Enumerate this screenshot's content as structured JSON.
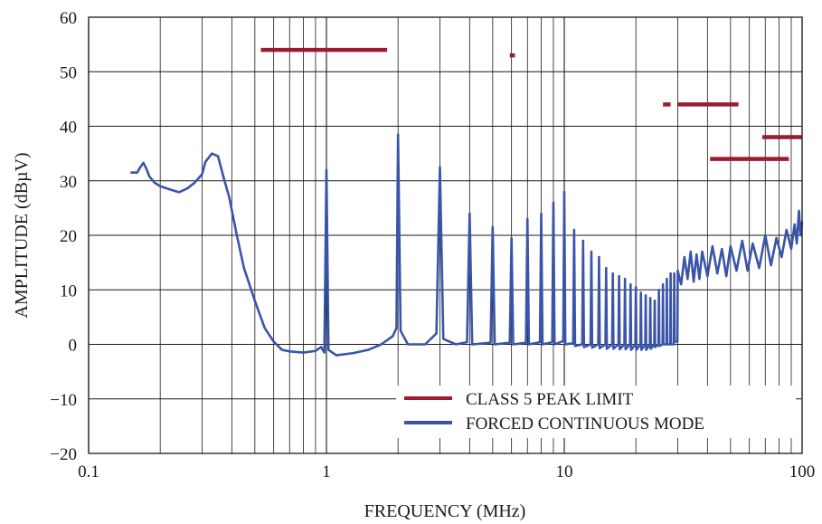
{
  "chart_data": {
    "type": "line",
    "title": "",
    "xlabel": "FREQUENCY (MHz)",
    "ylabel": "AMPLITUDE (dBµV)",
    "xscale": "log",
    "xlim": [
      0.1,
      100
    ],
    "ylim": [
      -20,
      60
    ],
    "x_ticks": [
      "0.1",
      "1",
      "10",
      "100"
    ],
    "x_tick_values": [
      0.1,
      1,
      10,
      100
    ],
    "y_ticks": [
      "60",
      "50",
      "40",
      "30",
      "20",
      "10",
      "0",
      "−10",
      "−20"
    ],
    "y_tick_values": [
      60,
      50,
      40,
      30,
      20,
      10,
      0,
      -10,
      -20
    ],
    "grid": true,
    "legend_position": "bottom-right",
    "colors": {
      "limit": "#9b1b30",
      "measured": "#3a55a8",
      "grid": "#1a1a1a"
    },
    "series": [
      {
        "name": "CLASS 5 PEAK LIMIT",
        "style": "segments",
        "segments": [
          {
            "x": [
              0.53,
              1.8
            ],
            "y": 54
          },
          {
            "x": [
              5.9,
              6.2
            ],
            "y": 53
          },
          {
            "x": [
              26,
              28
            ],
            "y": 44
          },
          {
            "x": [
              30,
              54
            ],
            "y": 44
          },
          {
            "x": [
              41,
              88
            ],
            "y": 34
          },
          {
            "x": [
              68,
              100
            ],
            "y": 38
          }
        ]
      },
      {
        "name": "FORCED CONTINUOUS MODE",
        "style": "line",
        "points": [
          [
            0.15,
            31.5
          ],
          [
            0.16,
            31.5
          ],
          [
            0.165,
            32.5
          ],
          [
            0.17,
            33.3
          ],
          [
            0.175,
            32.2
          ],
          [
            0.18,
            30.8
          ],
          [
            0.19,
            29.6
          ],
          [
            0.2,
            29.0
          ],
          [
            0.22,
            28.4
          ],
          [
            0.24,
            27.9
          ],
          [
            0.26,
            28.6
          ],
          [
            0.28,
            29.7
          ],
          [
            0.3,
            31.2
          ],
          [
            0.31,
            33.5
          ],
          [
            0.33,
            35.0
          ],
          [
            0.35,
            34.5
          ],
          [
            0.37,
            30.5
          ],
          [
            0.39,
            27.0
          ],
          [
            0.42,
            20.0
          ],
          [
            0.45,
            14.0
          ],
          [
            0.5,
            8.0
          ],
          [
            0.55,
            3.0
          ],
          [
            0.6,
            0.5
          ],
          [
            0.65,
            -1.0
          ],
          [
            0.7,
            -1.3
          ],
          [
            0.8,
            -1.5
          ],
          [
            0.9,
            -1.2
          ],
          [
            0.95,
            -0.5
          ],
          [
            0.98,
            -1.5
          ],
          [
            1.0,
            32.0
          ],
          [
            1.02,
            -1.0
          ],
          [
            1.1,
            -2.0
          ],
          [
            1.3,
            -1.6
          ],
          [
            1.5,
            -1.0
          ],
          [
            1.7,
            0.0
          ],
          [
            1.9,
            1.5
          ],
          [
            1.97,
            3.0
          ],
          [
            2.0,
            38.5
          ],
          [
            2.05,
            2.5
          ],
          [
            2.2,
            0.0
          ],
          [
            2.6,
            0.0
          ],
          [
            2.9,
            2.0
          ],
          [
            3.0,
            32.5
          ],
          [
            3.1,
            1.0
          ],
          [
            3.5,
            0.0
          ],
          [
            3.9,
            0.4
          ],
          [
            4.0,
            24.0
          ],
          [
            4.1,
            0.0
          ],
          [
            4.9,
            0.3
          ],
          [
            5.0,
            21.5
          ],
          [
            5.1,
            0.0
          ],
          [
            5.9,
            0.3
          ],
          [
            6.0,
            19.5
          ],
          [
            6.1,
            0.0
          ],
          [
            6.9,
            0.3
          ],
          [
            7.0,
            23.0
          ],
          [
            7.1,
            0.0
          ],
          [
            7.9,
            0.4
          ],
          [
            8.0,
            24.0
          ],
          [
            8.1,
            0.0
          ],
          [
            8.9,
            0.4
          ],
          [
            9.0,
            26.0
          ],
          [
            9.1,
            0.0
          ],
          [
            9.9,
            0.6
          ],
          [
            10.0,
            28.0
          ],
          [
            10.1,
            0.0
          ],
          [
            10.9,
            0.2
          ],
          [
            11.0,
            21.0
          ],
          [
            11.1,
            -0.3
          ],
          [
            11.9,
            0.0
          ],
          [
            12.0,
            19.0
          ],
          [
            12.1,
            -0.5
          ],
          [
            12.9,
            0.0
          ],
          [
            13.0,
            17.0
          ],
          [
            13.1,
            -0.6
          ],
          [
            13.9,
            0.0
          ],
          [
            14.0,
            16.0
          ],
          [
            14.1,
            -0.7
          ],
          [
            14.9,
            0.0
          ],
          [
            15.0,
            14.0
          ],
          [
            15.1,
            -0.8
          ],
          [
            15.9,
            0.0
          ],
          [
            16.0,
            13.0
          ],
          [
            16.1,
            -0.8
          ],
          [
            16.9,
            0.0
          ],
          [
            17.0,
            12.5
          ],
          [
            17.1,
            -0.9
          ],
          [
            17.9,
            0.0
          ],
          [
            18.0,
            12.0
          ],
          [
            18.1,
            -0.9
          ],
          [
            18.9,
            0.0
          ],
          [
            19.0,
            11.0
          ],
          [
            19.1,
            -1.0
          ],
          [
            19.9,
            0.0
          ],
          [
            20.0,
            10.5
          ],
          [
            20.1,
            -1.0
          ],
          [
            20.9,
            0.0
          ],
          [
            21.0,
            9.5
          ],
          [
            21.1,
            -1.0
          ],
          [
            21.9,
            0.0
          ],
          [
            22.0,
            9.0
          ],
          [
            22.1,
            -1.0
          ],
          [
            22.9,
            0.0
          ],
          [
            23.0,
            8.5
          ],
          [
            23.1,
            -0.8
          ],
          [
            23.9,
            0.0
          ],
          [
            24.0,
            8.0
          ],
          [
            24.1,
            -0.5
          ],
          [
            24.9,
            0.0
          ],
          [
            25.0,
            10.0
          ],
          [
            25.1,
            -0.3
          ],
          [
            25.9,
            0.0
          ],
          [
            26.0,
            11.0
          ],
          [
            26.1,
            0.0
          ],
          [
            26.9,
            0.0
          ],
          [
            27.0,
            12.0
          ],
          [
            27.1,
            0.0
          ],
          [
            27.9,
            0.0
          ],
          [
            28.0,
            13.0
          ],
          [
            28.1,
            0.0
          ],
          [
            28.9,
            0.0
          ],
          [
            29.0,
            13.0
          ],
          [
            29.1,
            0.5
          ],
          [
            29.9,
            0.5
          ],
          [
            30.0,
            13.5
          ],
          [
            31.0,
            11.0
          ],
          [
            32.0,
            16.0
          ],
          [
            33.0,
            12.0
          ],
          [
            34.0,
            17.0
          ],
          [
            35.0,
            11.5
          ],
          [
            36.0,
            16.5
          ],
          [
            37.0,
            12.0
          ],
          [
            38.0,
            17.0
          ],
          [
            40.0,
            12.5
          ],
          [
            42.0,
            18.0
          ],
          [
            44.0,
            13.0
          ],
          [
            46.0,
            17.5
          ],
          [
            48.0,
            12.5
          ],
          [
            50.0,
            18.0
          ],
          [
            53.0,
            13.5
          ],
          [
            56.0,
            19.0
          ],
          [
            59.0,
            13.5
          ],
          [
            62.0,
            18.5
          ],
          [
            66.0,
            14.0
          ],
          [
            70.0,
            20.0
          ],
          [
            74.0,
            14.5
          ],
          [
            78.0,
            19.5
          ],
          [
            82.0,
            16.0
          ],
          [
            86.0,
            21.0
          ],
          [
            90.0,
            17.5
          ],
          [
            93.0,
            22.0
          ],
          [
            95.0,
            18.5
          ],
          [
            97.0,
            24.5
          ],
          [
            98.5,
            20.0
          ],
          [
            100.0,
            22.5
          ]
        ]
      }
    ]
  }
}
